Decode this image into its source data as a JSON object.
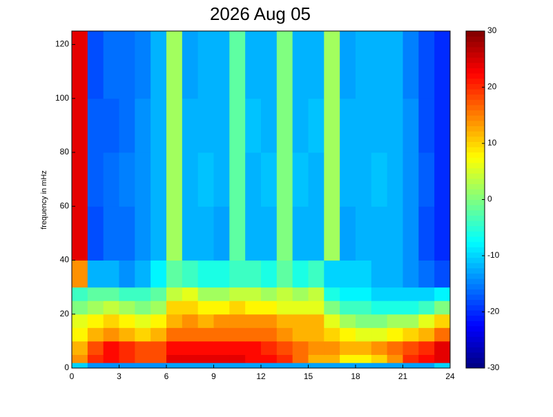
{
  "chart_data": {
    "type": "heatmap",
    "title": "2026 Aug 05",
    "y_label": "frequency in mHz",
    "x_edges": [
      0,
      1,
      2,
      3,
      4,
      5,
      6,
      7,
      8,
      9,
      10,
      11,
      12,
      13,
      14,
      15,
      16,
      17,
      18,
      19,
      20,
      21,
      22,
      23,
      24
    ],
    "y_edges": [
      0,
      2,
      5,
      10,
      15,
      20,
      25,
      30,
      40,
      60,
      80,
      100,
      125
    ],
    "z": [
      [
        -10,
        -14,
        -14,
        -14,
        -14,
        -14,
        -13,
        -13,
        -13,
        -13,
        -13,
        -13,
        -13,
        -13,
        -13,
        -13,
        -13,
        -13,
        -13,
        -13,
        -13,
        -13,
        -13,
        -10
      ],
      [
        14,
        20,
        22,
        20,
        18,
        18,
        24,
        24,
        24,
        24,
        24,
        22,
        22,
        20,
        16,
        12,
        12,
        8,
        8,
        10,
        14,
        20,
        22,
        24
      ],
      [
        12,
        18,
        22,
        20,
        18,
        18,
        22,
        22,
        22,
        22,
        22,
        22,
        20,
        18,
        16,
        14,
        14,
        12,
        12,
        14,
        16,
        18,
        20,
        24
      ],
      [
        8,
        12,
        14,
        12,
        10,
        12,
        16,
        16,
        16,
        16,
        16,
        16,
        16,
        14,
        12,
        12,
        10,
        8,
        6,
        6,
        8,
        10,
        12,
        16
      ],
      [
        6,
        8,
        10,
        8,
        6,
        8,
        12,
        14,
        12,
        14,
        14,
        14,
        14,
        12,
        12,
        12,
        6,
        2,
        0,
        0,
        2,
        2,
        6,
        10
      ],
      [
        0,
        2,
        4,
        2,
        0,
        2,
        10,
        10,
        8,
        8,
        10,
        8,
        8,
        6,
        6,
        6,
        0,
        -4,
        -4,
        -6,
        -6,
        -6,
        -4,
        0
      ],
      [
        -4,
        -2,
        -2,
        -4,
        -4,
        -2,
        4,
        6,
        2,
        2,
        4,
        4,
        2,
        4,
        2,
        4,
        -6,
        -8,
        -8,
        -10,
        -10,
        -10,
        -10,
        -8
      ],
      [
        14,
        -12,
        -12,
        -14,
        -12,
        -8,
        -2,
        -4,
        -6,
        -6,
        -4,
        -4,
        -6,
        -2,
        -6,
        -4,
        -10,
        -10,
        -10,
        -12,
        -12,
        -14,
        -16,
        -18
      ],
      [
        24,
        -18,
        -16,
        -16,
        -14,
        -12,
        2,
        -12,
        -12,
        -13,
        -2,
        -12,
        -12,
        0,
        -12,
        -12,
        2,
        -13,
        -12,
        -12,
        -12,
        -14,
        -18,
        -20
      ],
      [
        24,
        -17,
        -16,
        -15,
        -14,
        -12,
        2,
        -12,
        -11,
        -12,
        -2,
        -12,
        -11,
        0,
        -11,
        -12,
        2,
        -12,
        -12,
        -11,
        -12,
        -14,
        -17,
        -20
      ],
      [
        24,
        -17,
        -17,
        -16,
        -14,
        -12,
        2,
        -12,
        -12,
        -12,
        -2,
        -11,
        -12,
        0,
        -12,
        -11,
        2,
        -12,
        -12,
        -12,
        -12,
        -14,
        -18,
        -20
      ],
      [
        24,
        -18,
        -16,
        -16,
        -15,
        -12,
        2,
        -13,
        -12,
        -12,
        -2,
        -12,
        -12,
        0,
        -12,
        -12,
        2,
        -13,
        -12,
        -12,
        -12,
        -15,
        -18,
        -20
      ]
    ],
    "xlim": [
      0,
      24
    ],
    "xticks": [
      0,
      3,
      6,
      9,
      12,
      15,
      18,
      21,
      24
    ],
    "ylim": [
      0,
      125
    ],
    "yticks": [
      0,
      20,
      40,
      60,
      80,
      100,
      120
    ],
    "clim": [
      -30,
      30
    ],
    "cticks": [
      -30,
      -20,
      -10,
      0,
      10,
      20,
      30
    ],
    "colormap": "jet"
  }
}
